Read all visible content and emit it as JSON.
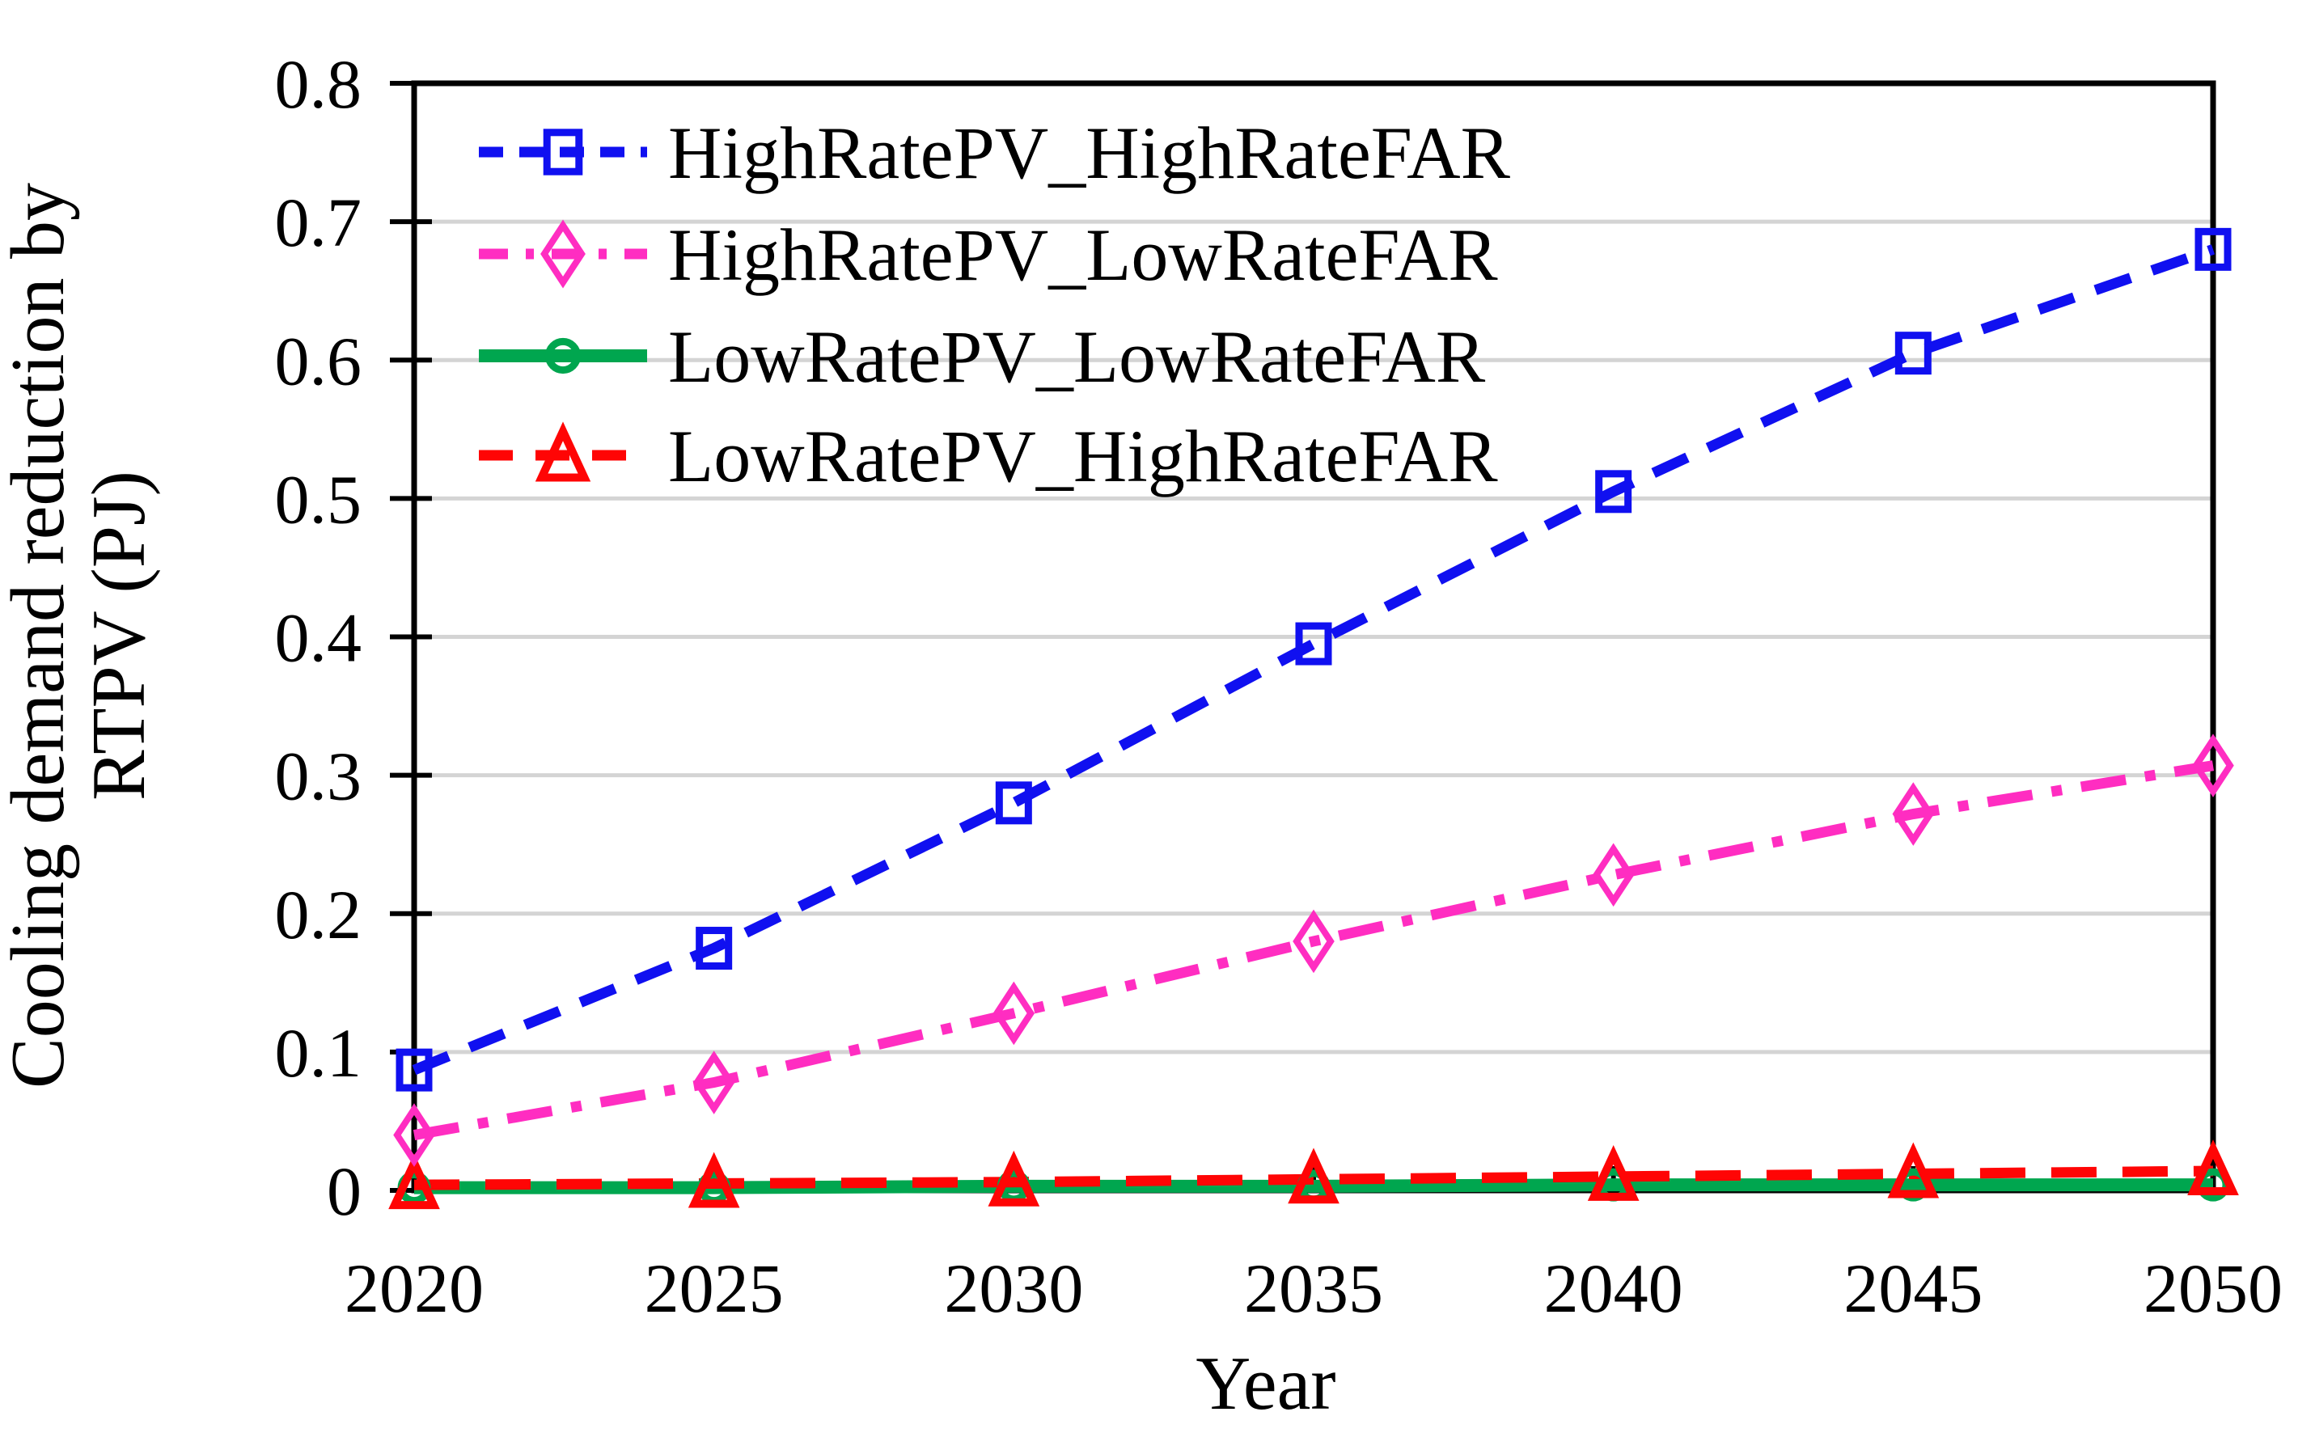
{
  "chart_data": {
    "type": "line",
    "title": "",
    "xlabel": "Year",
    "ylabel": "Cooling demand reduction by RTPV (PJ)",
    "ylabel_line1": "Cooling demand reduction by",
    "ylabel_line2": "RTPV (PJ)",
    "x": [
      2020,
      2025,
      2030,
      2035,
      2040,
      2045,
      2050
    ],
    "xtick_labels": [
      "2020",
      "2025",
      "2030",
      "2035",
      "2040",
      "2045",
      "2050"
    ],
    "xlim": [
      2020,
      2050
    ],
    "ylim": [
      0,
      0.8
    ],
    "yticks": [
      0,
      0.1,
      0.2,
      0.3,
      0.4,
      0.5,
      0.6,
      0.7,
      0.8
    ],
    "ytick_labels": [
      "0",
      "0.1",
      "0.2",
      "0.3",
      "0.4",
      "0.5",
      "0.6",
      "0.7",
      "0.8"
    ],
    "grid": "horizontal-only",
    "legend_position": "inside-top-left",
    "colors": {
      "background": "#FFFFFF",
      "axis": "#000000",
      "grid": "#D4D4D4",
      "text": "#000000"
    },
    "series": [
      {
        "name": "HighRatePV_HighRateFAR",
        "color": "#1010F0",
        "marker": "square",
        "line_style": "dashed",
        "values": [
          0.087,
          0.175,
          0.28,
          0.395,
          0.505,
          0.605,
          0.68
        ]
      },
      {
        "name": "HighRatePV_LowRateFAR",
        "color": "#FF2DC1",
        "marker": "diamond",
        "line_style": "dash-dot",
        "values": [
          0.04,
          0.078,
          0.128,
          0.18,
          0.228,
          0.272,
          0.307
        ]
      },
      {
        "name": "LowRatePV_LowRateFAR",
        "color": "#00A64F",
        "marker": "circle",
        "line_style": "solid",
        "values": [
          0.002,
          0.002,
          0.003,
          0.003,
          0.004,
          0.004,
          0.004
        ]
      },
      {
        "name": "LowRatePV_HighRateFAR",
        "color": "#FF0505",
        "marker": "triangle",
        "line_style": "long-dashed",
        "values": [
          0.004,
          0.005,
          0.006,
          0.008,
          0.01,
          0.012,
          0.014
        ]
      }
    ]
  }
}
